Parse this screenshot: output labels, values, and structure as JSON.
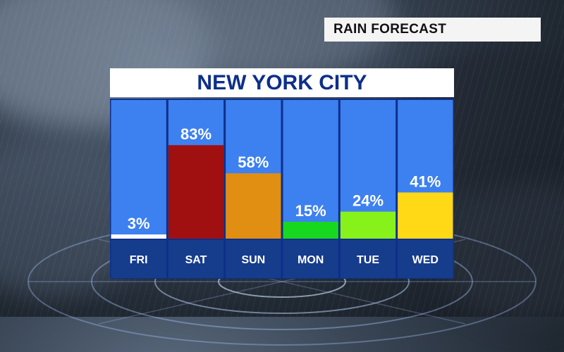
{
  "header": {
    "rain_forecast_label": "RAIN FORECAST"
  },
  "title": "NEW YORK CITY",
  "chart_data": {
    "type": "bar",
    "title": "NEW YORK CITY",
    "categories": [
      "FRI",
      "SAT",
      "SUN",
      "MON",
      "TUE",
      "WED"
    ],
    "values": [
      3,
      83,
      58,
      15,
      24,
      41
    ],
    "value_labels": [
      "3%",
      "83%",
      "58%",
      "15%",
      "24%",
      "41%"
    ],
    "bar_colors": [
      "#ffffff",
      "#a11010",
      "#e08f12",
      "#17d81e",
      "#86f21a",
      "#ffd816"
    ],
    "ylim": [
      0,
      100
    ],
    "unit": "%",
    "grid": false,
    "legend": "none"
  },
  "colors": {
    "panel_blue": "#3d80f0",
    "label_strip": "#163c8c",
    "divider": "#0d2f8a",
    "title_text": "#0d2f8a"
  }
}
